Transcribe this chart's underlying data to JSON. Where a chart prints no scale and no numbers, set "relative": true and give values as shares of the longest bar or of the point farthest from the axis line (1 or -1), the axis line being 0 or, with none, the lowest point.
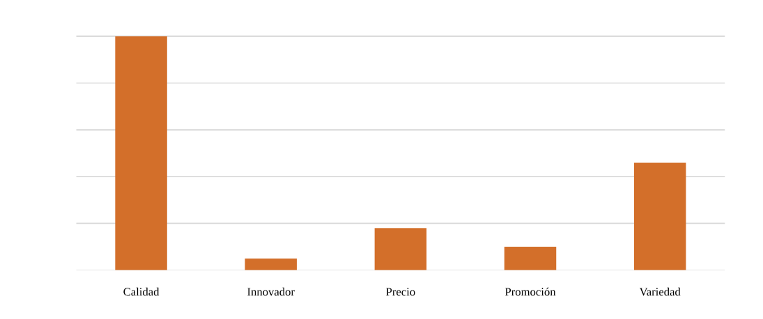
{
  "chart_data": {
    "type": "bar",
    "relative": true,
    "categories": [
      "Calidad",
      "Innovador",
      "Precio",
      "Promoción",
      "Variedad"
    ],
    "values": [
      1,
      0.05,
      0.18,
      0.1,
      0.46
    ],
    "color": "#d36f2a",
    "grid": "y"
  }
}
